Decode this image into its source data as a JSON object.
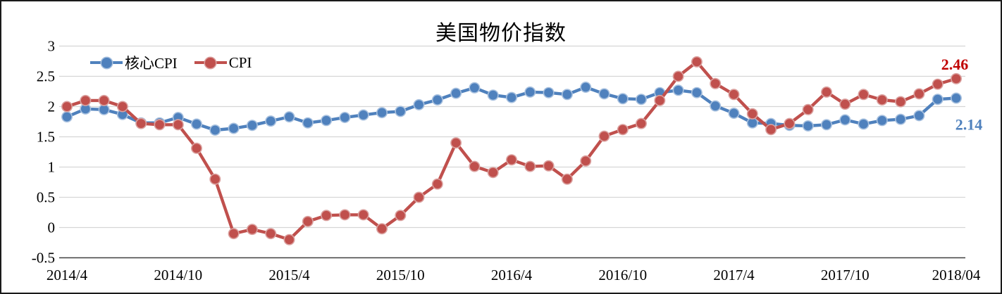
{
  "window": {
    "background": "#ffffff",
    "border_color": "#1a1a1a"
  },
  "chart_data": {
    "type": "line",
    "title": "美国物价指数",
    "xlabel": "",
    "ylabel": "",
    "ylim": [
      -0.5,
      3
    ],
    "y_ticks": [
      3,
      2.5,
      2,
      1.5,
      1,
      0.5,
      0,
      -0.5
    ],
    "grid": true,
    "legend_position": "top-left-inside",
    "x_frequency": "monthly",
    "x_range": [
      "2014/4",
      "2018/04"
    ],
    "x_tick_indices": [
      0,
      6,
      12,
      18,
      24,
      30,
      36,
      42,
      48
    ],
    "x_tick_labels": [
      "2014/4",
      "2014/10",
      "2015/4",
      "2015/10",
      "2016/4",
      "2016/10",
      "2017/4",
      "2017/10",
      "2018/04"
    ],
    "series": [
      {
        "name": "核心CPI",
        "color": "#4F81BD",
        "marker_edge": "#A8C1DF",
        "values": [
          1.83,
          1.96,
          1.95,
          1.87,
          1.73,
          1.73,
          1.82,
          1.71,
          1.61,
          1.64,
          1.69,
          1.76,
          1.83,
          1.73,
          1.77,
          1.82,
          1.86,
          1.9,
          1.92,
          2.03,
          2.11,
          2.22,
          2.31,
          2.19,
          2.15,
          2.24,
          2.23,
          2.2,
          2.32,
          2.21,
          2.13,
          2.12,
          2.23,
          2.27,
          2.23,
          2.01,
          1.89,
          1.73,
          1.72,
          1.69,
          1.68,
          1.7,
          1.78,
          1.71,
          1.77,
          1.79,
          1.85,
          2.12,
          2.14
        ]
      },
      {
        "name": "CPI",
        "color": "#C0504D",
        "marker_edge": "#DBA2A0",
        "values": [
          2.0,
          2.1,
          2.1,
          2.0,
          1.72,
          1.7,
          1.7,
          1.31,
          0.8,
          -0.1,
          -0.03,
          -0.1,
          -0.2,
          0.1,
          0.2,
          0.21,
          0.21,
          -0.02,
          0.2,
          0.5,
          0.72,
          1.4,
          1.01,
          0.91,
          1.12,
          1.01,
          1.02,
          0.8,
          1.1,
          1.51,
          1.62,
          1.72,
          2.1,
          2.5,
          2.74,
          2.38,
          2.2,
          1.88,
          1.62,
          1.72,
          1.95,
          2.24,
          2.04,
          2.2,
          2.11,
          2.08,
          2.21,
          2.37,
          2.46
        ]
      }
    ],
    "end_labels": [
      {
        "text": "2.46",
        "color": "#C00000",
        "series": "CPI"
      },
      {
        "text": "2.14",
        "color": "#4F81BD",
        "series": "核心CPI"
      }
    ],
    "grid_color": "#D6D6D6",
    "axis_color": "#404040"
  }
}
